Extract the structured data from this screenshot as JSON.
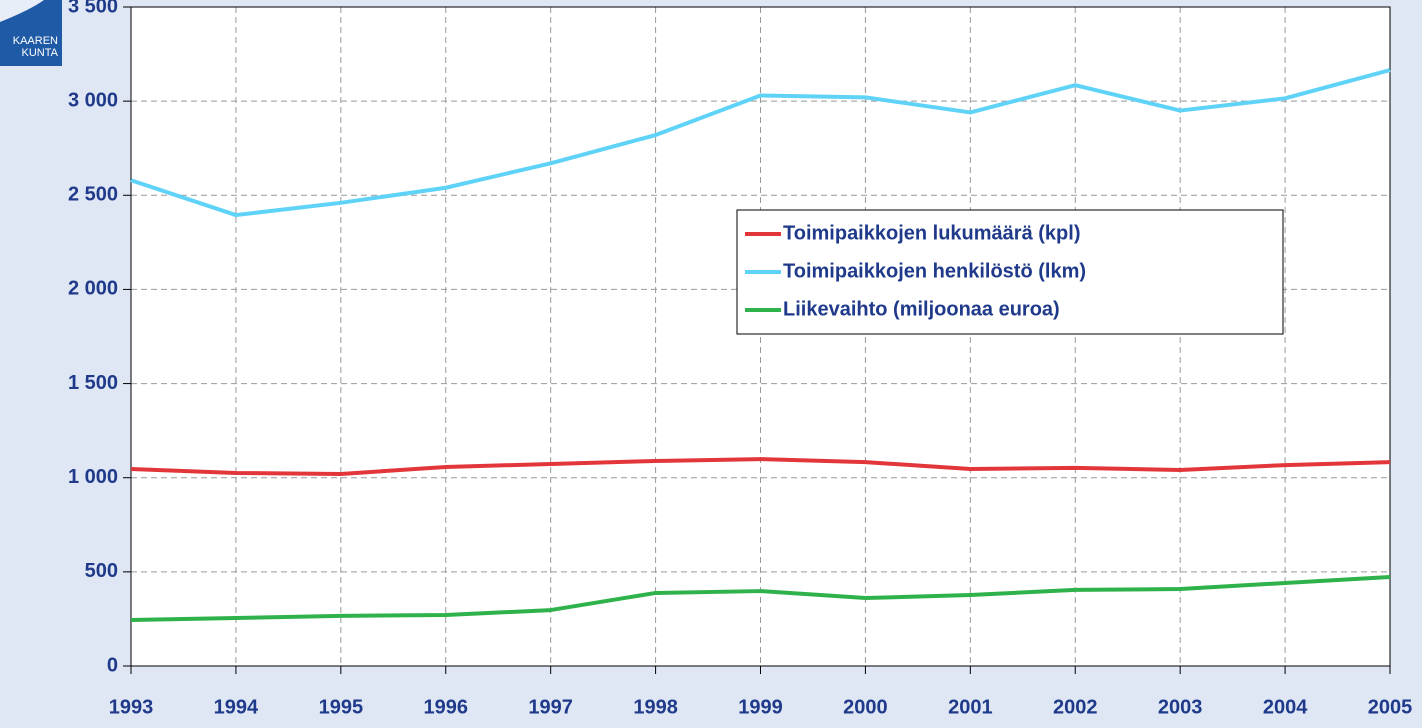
{
  "chart_data": {
    "type": "line",
    "categories": [
      "1993",
      "1994",
      "1995",
      "1996",
      "1997",
      "1998",
      "1999",
      "2000",
      "2001",
      "2002",
      "2003",
      "2004",
      "2005"
    ],
    "series": [
      {
        "name": "Toimipaikkojen lukumäärä (kpl)",
        "color": "#e2363b",
        "values": [
          1046,
          1025,
          1020,
          1057,
          1073,
          1089,
          1099,
          1083,
          1046,
          1052,
          1041,
          1067,
          1083
        ]
      },
      {
        "name": "Toimipaikkojen henkilöstö (lkm)",
        "color": "#5fd3f7",
        "values": [
          2580,
          2395,
          2460,
          2540,
          2670,
          2820,
          3030,
          3020,
          2940,
          3085,
          2950,
          3015,
          3165
        ]
      },
      {
        "name": "Liikevaihto (miljoonaa euroa)",
        "color": "#2fb24b",
        "values": [
          244,
          255,
          266,
          271,
          297,
          388,
          398,
          361,
          377,
          404,
          409,
          441,
          473
        ]
      }
    ],
    "ylim": [
      0,
      3500
    ],
    "yticks": [
      0,
      500,
      {
        "value": 1000,
        "label": "1 000"
      },
      {
        "value": 1500,
        "label": "1 500"
      },
      {
        "value": 2000,
        "label": "2 000"
      },
      {
        "value": 2500,
        "label": "2 500"
      },
      {
        "value": 3000,
        "label": "3 000"
      },
      {
        "value": 3500,
        "label": "3 500"
      }
    ],
    "grid": true,
    "legend": "center-right"
  },
  "logo": {
    "lines": [
      "KAAREN",
      "KUNTA"
    ]
  }
}
